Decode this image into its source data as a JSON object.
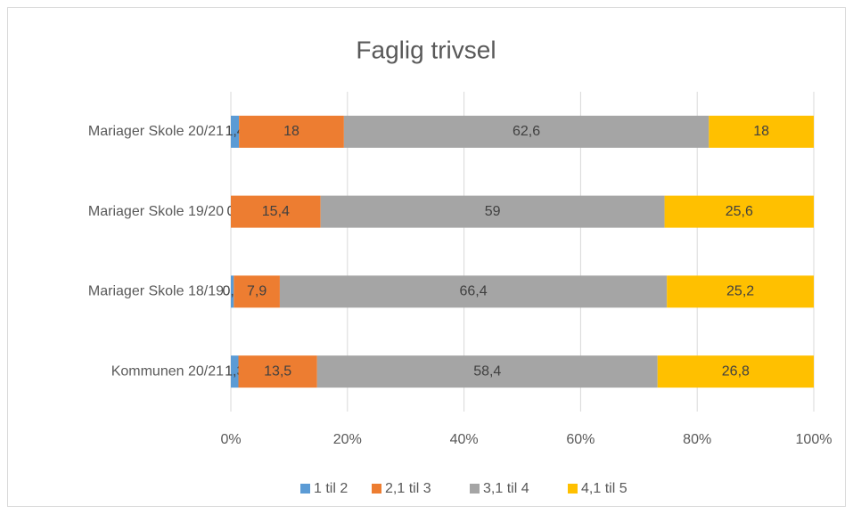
{
  "chart_data": {
    "type": "stacked_barh",
    "title": "Faglig trivsel",
    "categories": [
      "Mariager Skole 20/21",
      "Mariager Skole 19/20",
      "Mariager Skole 18/19",
      "Kommunen 20/21"
    ],
    "series": [
      {
        "name": "1 til 2",
        "color": "#5b9bd5",
        "values": [
          1.4,
          0,
          0.5,
          1.3
        ],
        "value_labels": [
          "1,4",
          "0",
          "0,5",
          "1,3"
        ]
      },
      {
        "name": "2,1 til 3",
        "color": "#ed7d31",
        "values": [
          18,
          15.4,
          7.9,
          13.5
        ],
        "value_labels": [
          "18",
          "15,4",
          "7,9",
          "13,5"
        ]
      },
      {
        "name": "3,1 til 4",
        "color": "#a5a5a5",
        "values": [
          62.6,
          59,
          66.4,
          58.4
        ],
        "value_labels": [
          "62,6",
          "59",
          "66,4",
          "58,4"
        ]
      },
      {
        "name": "4,1 til 5",
        "color": "#ffc000",
        "values": [
          18,
          25.6,
          25.2,
          26.8
        ],
        "value_labels": [
          "18",
          "25,6",
          "25,2",
          "26,8"
        ]
      }
    ],
    "xlim": [
      0,
      100
    ],
    "xticks": [
      {
        "value": 0,
        "label": "0%"
      },
      {
        "value": 20,
        "label": "20%"
      },
      {
        "value": 40,
        "label": "40%"
      },
      {
        "value": 60,
        "label": "60%"
      },
      {
        "value": 80,
        "label": "80%"
      },
      {
        "value": 100,
        "label": "100%"
      }
    ],
    "grid": true,
    "legend": "bottom"
  }
}
